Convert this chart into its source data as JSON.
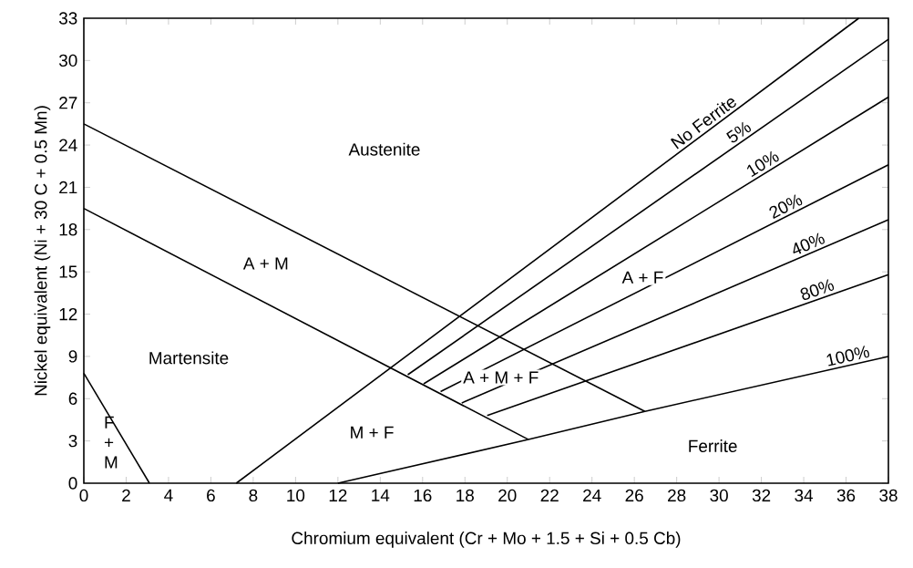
{
  "chart_data": {
    "type": "line",
    "xlabel": "Chromium equivalent (Cr + Mo + 1.5 + Si + 0.5 Cb)",
    "ylabel": "Nickel equivalent (Ni + 30 C + 0.5 Mn)",
    "xlim": [
      0,
      38
    ],
    "ylim": [
      0,
      33
    ],
    "xticks": [
      0,
      2,
      4,
      6,
      8,
      10,
      12,
      14,
      16,
      18,
      20,
      22,
      24,
      26,
      28,
      30,
      32,
      34,
      36,
      38
    ],
    "yticks": [
      0,
      3,
      6,
      9,
      12,
      15,
      18,
      21,
      24,
      27,
      30,
      33
    ],
    "marker": "none",
    "line_style": "solid",
    "series": [
      {
        "name": "No Ferrite",
        "color": "#000000",
        "x": [
          7.2,
          36.6
        ],
        "values": [
          0,
          33
        ]
      },
      {
        "name": "5%",
        "color": "#000000",
        "x": [
          15.3,
          38
        ],
        "values": [
          7.7,
          31.5
        ]
      },
      {
        "name": "10%",
        "color": "#000000",
        "x": [
          16.05,
          38
        ],
        "values": [
          7.05,
          27.4
        ]
      },
      {
        "name": "20%",
        "color": "#000000",
        "x": [
          16.85,
          38
        ],
        "values": [
          6.5,
          22.6
        ]
      },
      {
        "name": "40%",
        "color": "#000000",
        "x": [
          17.85,
          38
        ],
        "values": [
          5.7,
          18.7
        ]
      },
      {
        "name": "80%",
        "color": "#000000",
        "x": [
          19.05,
          38
        ],
        "values": [
          4.8,
          14.8
        ]
      },
      {
        "name": "100%",
        "color": "#000000",
        "x": [
          12,
          21,
          26.5,
          38
        ],
        "values": [
          0,
          3.1,
          5.1,
          9.0
        ]
      },
      {
        "color": "#000000",
        "x": [
          0,
          26.5
        ],
        "values": [
          25.5,
          5.1
        ]
      },
      {
        "color": "#000000",
        "x": [
          0,
          21
        ],
        "values": [
          19.5,
          3.1
        ]
      },
      {
        "color": "#000000",
        "x": [
          0,
          3.1
        ],
        "values": [
          7.8,
          0
        ]
      }
    ],
    "annotations": [
      "Austenite",
      "A + M",
      "Martensite",
      "F + M",
      "M + F",
      "A + M + F",
      "A + F",
      "Ferrite"
    ]
  }
}
